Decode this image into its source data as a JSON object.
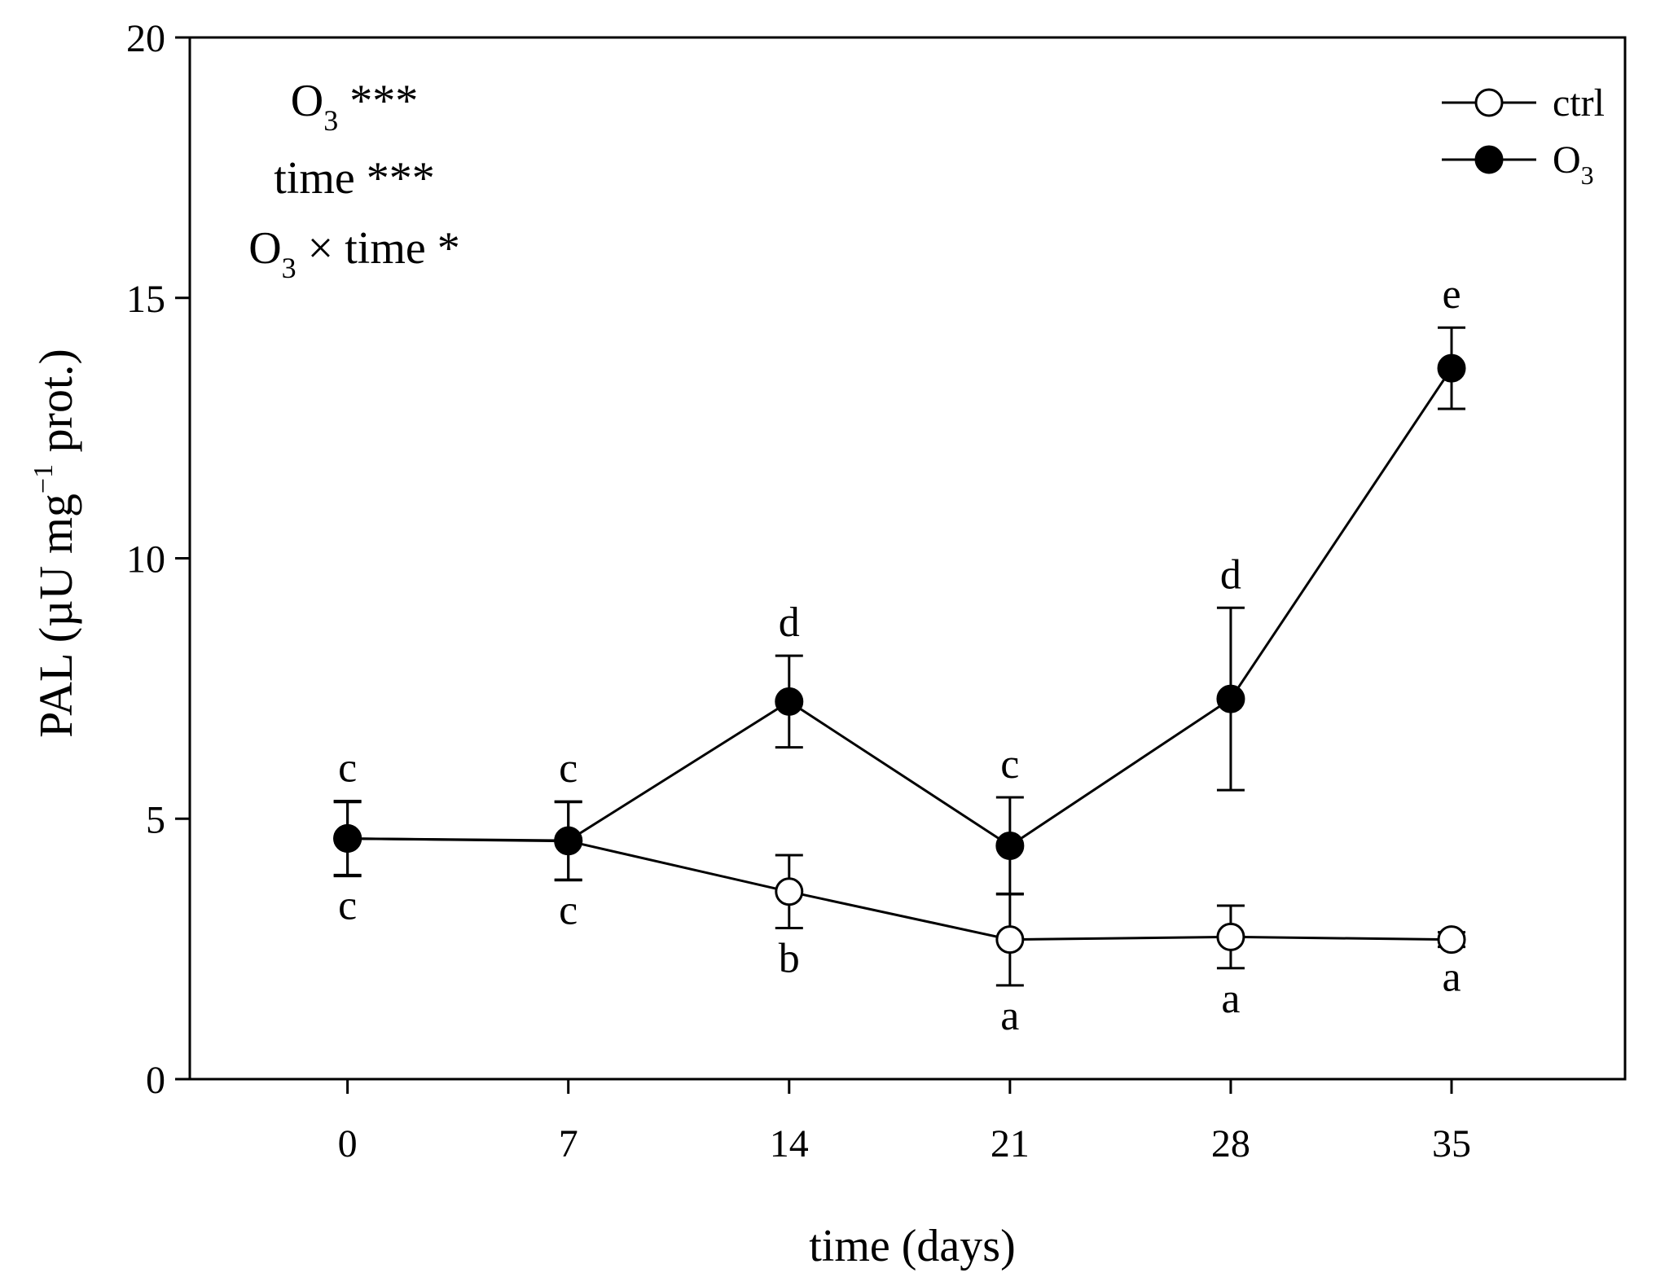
{
  "chart_data": {
    "type": "line",
    "xlabel": "time (days)",
    "ylabel": {
      "main": "PAL (µU mg",
      "sup": "−1",
      "tail": " prot.)"
    },
    "x": [
      0,
      7,
      14,
      21,
      28,
      35
    ],
    "xlim": [
      -5,
      40.5
    ],
    "ylim": [
      0,
      20
    ],
    "xticks": [
      0,
      7,
      14,
      21,
      28,
      35
    ],
    "yticks": [
      0,
      5,
      10,
      15,
      20
    ],
    "legend_position": "top-right",
    "series": [
      {
        "name": "ctrl",
        "marker": "open-circle",
        "values": [
          4.62,
          4.57,
          3.6,
          2.68,
          2.73,
          2.68
        ],
        "errors": [
          0.7,
          0.75,
          0.7,
          0.88,
          0.6,
          0.14
        ],
        "letters": [
          "c",
          "c",
          "b",
          "a",
          "a",
          "a"
        ]
      },
      {
        "name": "O3",
        "legend_label": {
          "base": "O",
          "sub": "3"
        },
        "marker": "filled-circle",
        "values": [
          4.62,
          4.58,
          7.25,
          4.48,
          7.3,
          13.65
        ],
        "errors": [
          0.72,
          0.75,
          0.88,
          0.93,
          1.75,
          0.78
        ],
        "letters": [
          "c",
          "c",
          "d",
          "c",
          "d",
          "e"
        ]
      }
    ],
    "annotations": [
      {
        "parts": [
          {
            "text": "O"
          },
          {
            "text": "3",
            "sub": true
          },
          {
            "text": " ***"
          }
        ]
      },
      {
        "parts": [
          {
            "text": "time ***"
          }
        ]
      },
      {
        "parts": [
          {
            "text": "O"
          },
          {
            "text": "3",
            "sub": true
          },
          {
            "text": " × time *"
          }
        ]
      }
    ]
  }
}
